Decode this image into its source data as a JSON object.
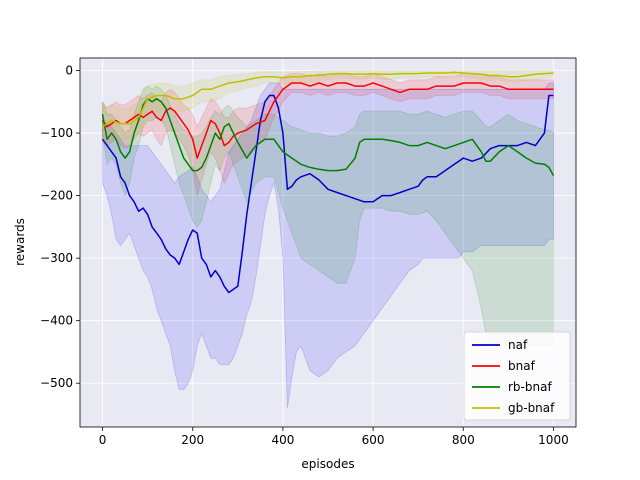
{
  "chart_data": {
    "type": "line",
    "title": "",
    "xlabel": "episodes",
    "ylabel": "rewards",
    "xlim": [
      -50,
      1050
    ],
    "ylim": [
      -570,
      20
    ],
    "xticks": [
      0,
      200,
      400,
      600,
      800,
      1000
    ],
    "xtick_labels": [
      "0",
      "200",
      "400",
      "600",
      "800",
      "1000"
    ],
    "yticks": [
      0,
      -100,
      -200,
      -300,
      -400,
      -500
    ],
    "ytick_labels": [
      "0",
      "−100",
      "−200",
      "−300",
      "−400",
      "−500"
    ],
    "grid": true,
    "legend_position": "lower-right",
    "plot_background": "#e9e9f3",
    "series": [
      {
        "name": "naf",
        "color": "#0000cc",
        "fill": "#0000ff",
        "x": [
          0,
          10,
          20,
          30,
          40,
          50,
          60,
          70,
          80,
          90,
          100,
          110,
          120,
          130,
          140,
          150,
          160,
          170,
          180,
          190,
          200,
          210,
          220,
          230,
          240,
          250,
          260,
          270,
          280,
          290,
          300,
          310,
          320,
          330,
          340,
          350,
          360,
          370,
          380,
          390,
          400,
          410,
          420,
          430,
          440,
          460,
          480,
          500,
          520,
          540,
          560,
          580,
          600,
          620,
          640,
          660,
          680,
          700,
          710,
          720,
          740,
          760,
          780,
          790,
          800,
          820,
          840,
          860,
          880,
          900,
          920,
          940,
          960,
          980,
          990,
          1000
        ],
        "y": [
          -110,
          -120,
          -130,
          -140,
          -170,
          -180,
          -200,
          -210,
          -225,
          -220,
          -230,
          -250,
          -260,
          -270,
          -285,
          -295,
          -300,
          -310,
          -290,
          -270,
          -255,
          -260,
          -300,
          -310,
          -330,
          -320,
          -330,
          -345,
          -355,
          -350,
          -345,
          -290,
          -230,
          -180,
          -130,
          -80,
          -50,
          -40,
          -40,
          -60,
          -100,
          -190,
          -185,
          -175,
          -170,
          -165,
          -175,
          -190,
          -195,
          -200,
          -205,
          -210,
          -210,
          -200,
          -200,
          -195,
          -190,
          -185,
          -175,
          -170,
          -170,
          -160,
          -150,
          -145,
          -140,
          -145,
          -140,
          -125,
          -120,
          -120,
          -120,
          -115,
          -120,
          -100,
          -40,
          -40
        ],
        "upper": [
          -80,
          -85,
          -90,
          -100,
          -110,
          -120,
          -120,
          -120,
          -120,
          -120,
          -120,
          -130,
          -140,
          -150,
          -160,
          -170,
          -180,
          -170,
          -165,
          -160,
          -155,
          -170,
          -190,
          -200,
          -210,
          -200,
          -190,
          -160,
          -130,
          -120,
          -110,
          -100,
          -90,
          -80,
          -60,
          -40,
          -30,
          -20,
          -20,
          -20,
          -30,
          -30,
          -30,
          -30,
          -30,
          -30,
          -30,
          -30,
          -30,
          -30,
          -30,
          -30,
          -30,
          -30,
          -30,
          -30,
          -30,
          -30,
          -30,
          -30,
          -30,
          -30,
          -30,
          -30,
          -30,
          -30,
          -30,
          -30,
          -30,
          -30,
          -30,
          -30,
          -30,
          -30,
          -20,
          -20
        ],
        "lower": [
          -180,
          -200,
          -230,
          -270,
          -280,
          -270,
          -260,
          -280,
          -300,
          -320,
          -330,
          -350,
          -380,
          -400,
          -420,
          -440,
          -480,
          -510,
          -510,
          -500,
          -480,
          -440,
          -420,
          -440,
          -460,
          -460,
          -470,
          -470,
          -470,
          -460,
          -440,
          -420,
          -390,
          -370,
          -330,
          -280,
          -230,
          -200,
          -180,
          -220,
          -300,
          -540,
          -490,
          -450,
          -440,
          -480,
          -490,
          -480,
          -460,
          -450,
          -440,
          -420,
          -400,
          -380,
          -360,
          -340,
          -320,
          -310,
          -300,
          -300,
          -300,
          -300,
          -300,
          -300,
          -290,
          -290,
          -280,
          -280,
          -280,
          -280,
          -280,
          -280,
          -280,
          -280,
          -270,
          -270
        ]
      },
      {
        "name": "bnaf",
        "color": "#ff0000",
        "fill": "#ff0000",
        "x": [
          0,
          10,
          20,
          30,
          40,
          50,
          60,
          70,
          80,
          90,
          100,
          110,
          120,
          130,
          140,
          150,
          160,
          170,
          180,
          190,
          200,
          210,
          220,
          230,
          240,
          250,
          260,
          270,
          280,
          290,
          300,
          320,
          340,
          360,
          380,
          400,
          420,
          440,
          460,
          480,
          500,
          520,
          540,
          560,
          580,
          600,
          620,
          640,
          660,
          680,
          700,
          720,
          740,
          760,
          780,
          800,
          820,
          840,
          860,
          880,
          900,
          920,
          940,
          960,
          980,
          1000
        ],
        "y": [
          -80,
          -90,
          -85,
          -80,
          -85,
          -85,
          -80,
          -75,
          -70,
          -75,
          -70,
          -65,
          -75,
          -80,
          -65,
          -60,
          -65,
          -75,
          -85,
          -95,
          -110,
          -140,
          -120,
          -100,
          -80,
          -85,
          -100,
          -120,
          -115,
          -105,
          -100,
          -95,
          -85,
          -80,
          -50,
          -30,
          -20,
          -20,
          -25,
          -20,
          -25,
          -20,
          -20,
          -25,
          -25,
          -20,
          -25,
          -30,
          -35,
          -30,
          -30,
          -30,
          -25,
          -25,
          -25,
          -20,
          -20,
          -20,
          -25,
          -25,
          -30,
          -30,
          -30,
          -30,
          -30,
          -30
        ],
        "upper": [
          -50,
          -60,
          -55,
          -50,
          -55,
          -55,
          -50,
          -45,
          -40,
          -45,
          -40,
          -35,
          -45,
          -50,
          -35,
          -30,
          -35,
          -45,
          -55,
          -60,
          -70,
          -90,
          -75,
          -60,
          -45,
          -50,
          -60,
          -75,
          -75,
          -65,
          -60,
          -60,
          -55,
          -50,
          -30,
          -10,
          -5,
          -5,
          -10,
          -5,
          -10,
          -5,
          -5,
          -10,
          -10,
          -5,
          -10,
          -15,
          -20,
          -15,
          -15,
          -15,
          -10,
          -10,
          -10,
          -5,
          -5,
          -5,
          -10,
          -10,
          -15,
          -15,
          -15,
          -15,
          -15,
          -15
        ],
        "lower": [
          -110,
          -120,
          -115,
          -110,
          -120,
          -125,
          -120,
          -110,
          -100,
          -105,
          -100,
          -95,
          -110,
          -120,
          -100,
          -95,
          -100,
          -110,
          -120,
          -135,
          -160,
          -200,
          -175,
          -150,
          -130,
          -140,
          -160,
          -180,
          -165,
          -150,
          -145,
          -135,
          -120,
          -110,
          -75,
          -50,
          -35,
          -35,
          -40,
          -35,
          -40,
          -35,
          -35,
          -40,
          -40,
          -35,
          -40,
          -45,
          -50,
          -45,
          -45,
          -45,
          -40,
          -40,
          -40,
          -35,
          -35,
          -35,
          -40,
          -40,
          -45,
          -45,
          -45,
          -45,
          -45,
          -45
        ]
      },
      {
        "name": "rb-bnaf",
        "color": "#008000",
        "fill": "#008000",
        "x": [
          0,
          10,
          20,
          30,
          40,
          50,
          60,
          70,
          80,
          90,
          100,
          110,
          120,
          130,
          140,
          150,
          160,
          170,
          180,
          190,
          200,
          210,
          220,
          230,
          240,
          250,
          260,
          270,
          280,
          290,
          300,
          320,
          340,
          360,
          380,
          400,
          420,
          440,
          460,
          480,
          500,
          520,
          540,
          560,
          570,
          580,
          600,
          620,
          640,
          660,
          680,
          700,
          720,
          740,
          760,
          780,
          800,
          820,
          840,
          850,
          860,
          880,
          900,
          920,
          940,
          960,
          980,
          990,
          1000
        ],
        "y": [
          -70,
          -110,
          -100,
          -110,
          -130,
          -140,
          -130,
          -100,
          -80,
          -55,
          -45,
          -50,
          -45,
          -50,
          -60,
          -80,
          -100,
          -120,
          -140,
          -150,
          -160,
          -160,
          -155,
          -140,
          -120,
          -100,
          -110,
          -90,
          -85,
          -100,
          -115,
          -140,
          -120,
          -110,
          -110,
          -130,
          -140,
          -150,
          -155,
          -158,
          -160,
          -160,
          -158,
          -140,
          -115,
          -110,
          -110,
          -110,
          -112,
          -115,
          -120,
          -120,
          -115,
          -120,
          -125,
          -120,
          -115,
          -110,
          -130,
          -145,
          -145,
          -130,
          -120,
          -130,
          -140,
          -148,
          -150,
          -155,
          -168
        ],
        "upper": [
          -50,
          -70,
          -70,
          -80,
          -90,
          -100,
          -95,
          -70,
          -50,
          -30,
          -25,
          -30,
          -25,
          -30,
          -40,
          -55,
          -70,
          -85,
          -95,
          -100,
          -105,
          -105,
          -100,
          -90,
          -75,
          -65,
          -70,
          -60,
          -55,
          -65,
          -75,
          -90,
          -80,
          -70,
          -70,
          -80,
          -90,
          -95,
          -100,
          -100,
          -105,
          -105,
          -100,
          -90,
          -70,
          -65,
          -65,
          -65,
          -65,
          -65,
          -70,
          -70,
          -65,
          -70,
          -75,
          -70,
          -65,
          -65,
          -80,
          -90,
          -90,
          -80,
          -70,
          -80,
          -85,
          -90,
          -95,
          -95,
          -100
        ],
        "lower": [
          -100,
          -150,
          -140,
          -150,
          -180,
          -200,
          -180,
          -140,
          -120,
          -90,
          -80,
          -80,
          -75,
          -80,
          -90,
          -120,
          -150,
          -180,
          -200,
          -220,
          -240,
          -250,
          -240,
          -210,
          -180,
          -150,
          -160,
          -140,
          -130,
          -150,
          -170,
          -210,
          -180,
          -170,
          -170,
          -220,
          -260,
          -300,
          -310,
          -320,
          -330,
          -340,
          -340,
          -300,
          -240,
          -220,
          -220,
          -220,
          -225,
          -225,
          -230,
          -230,
          -225,
          -240,
          -260,
          -280,
          -300,
          -320,
          -380,
          -420,
          -440,
          -440,
          -440,
          -440,
          -440,
          -440,
          -440,
          -440,
          -440
        ]
      },
      {
        "name": "gb-bnaf",
        "color": "#bfbf00",
        "fill": "#bfbf00",
        "x": [
          0,
          20,
          40,
          60,
          80,
          100,
          120,
          140,
          160,
          180,
          200,
          220,
          240,
          260,
          280,
          300,
          320,
          340,
          360,
          380,
          400,
          420,
          440,
          460,
          480,
          500,
          520,
          540,
          560,
          580,
          600,
          620,
          640,
          660,
          680,
          700,
          720,
          740,
          760,
          780,
          800,
          820,
          840,
          860,
          880,
          900,
          920,
          940,
          960,
          980,
          1000
        ],
        "y": [
          -90,
          -80,
          -85,
          -85,
          -75,
          -45,
          -40,
          -40,
          -45,
          -45,
          -40,
          -30,
          -30,
          -25,
          -20,
          -18,
          -15,
          -12,
          -10,
          -10,
          -12,
          -10,
          -10,
          -8,
          -8,
          -6,
          -5,
          -5,
          -6,
          -6,
          -5,
          -6,
          -6,
          -5,
          -5,
          -5,
          -4,
          -4,
          -4,
          -3,
          -4,
          -5,
          -6,
          -8,
          -8,
          -10,
          -10,
          -8,
          -6,
          -5,
          -4
        ],
        "upper": [
          -60,
          -55,
          -60,
          -60,
          -50,
          -25,
          -20,
          -20,
          -25,
          -25,
          -20,
          -15,
          -15,
          -10,
          -8,
          -6,
          -5,
          -3,
          -2,
          -2,
          -3,
          -2,
          -2,
          -1,
          -1,
          0,
          0,
          0,
          0,
          0,
          0,
          0,
          0,
          0,
          0,
          0,
          0,
          0,
          0,
          0,
          0,
          0,
          0,
          0,
          0,
          0,
          0,
          0,
          0,
          0,
          0
        ],
        "lower": [
          -120,
          -110,
          -110,
          -110,
          -100,
          -70,
          -65,
          -60,
          -65,
          -65,
          -60,
          -50,
          -50,
          -45,
          -35,
          -32,
          -28,
          -25,
          -20,
          -20,
          -22,
          -20,
          -20,
          -18,
          -18,
          -15,
          -12,
          -12,
          -13,
          -14,
          -12,
          -14,
          -14,
          -12,
          -12,
          -12,
          -10,
          -10,
          -10,
          -8,
          -10,
          -12,
          -14,
          -16,
          -16,
          -18,
          -18,
          -16,
          -14,
          -12,
          -10
        ]
      }
    ]
  }
}
